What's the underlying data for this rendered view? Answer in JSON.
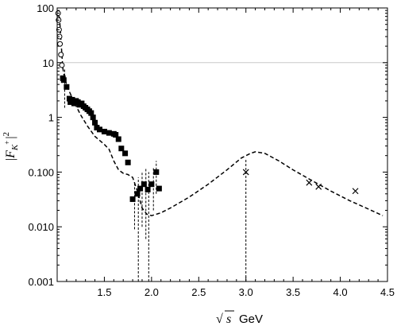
{
  "chart_data": {
    "type": "scatter",
    "xlabel_sqrt": "√",
    "xlabel_var": "s",
    "xlabel_unit": "GeV",
    "ylabel_left": "|",
    "ylabel_F": "F",
    "ylabel_sub": "K",
    "ylabel_sup": "+",
    "ylabel_right": "|",
    "ylabel_pow": "2",
    "xlim": [
      1.0,
      4.5
    ],
    "ylim": [
      0.001,
      100
    ],
    "yscale": "log",
    "grid": "horizontal line at y = 10",
    "x_ticks": [
      1.5,
      2.0,
      2.5,
      3.0,
      3.5,
      4.0,
      4.5
    ],
    "x_tick_labels": [
      "1.5",
      "2.0",
      "2.5",
      "3.0",
      "3.5",
      "4.0",
      "4.5"
    ],
    "y_ticks": [
      0.001,
      0.01,
      0.1,
      1,
      10,
      100
    ],
    "y_tick_labels": [
      "0.001",
      "0.010",
      "0.100",
      "1",
      "10",
      "100"
    ],
    "reference_line_y": 10,
    "series": [
      {
        "marker": "filled-square",
        "points": [
          {
            "x": 1.06,
            "y": 5.2
          },
          {
            "x": 1.07,
            "y": 4.8
          },
          {
            "x": 1.1,
            "y": 3.6
          },
          {
            "x": 1.13,
            "y": 2.2
          },
          {
            "x": 1.14,
            "y": 1.9
          },
          {
            "x": 1.16,
            "y": 2.1
          },
          {
            "x": 1.18,
            "y": 1.8
          },
          {
            "x": 1.2,
            "y": 2.0
          },
          {
            "x": 1.22,
            "y": 1.9
          },
          {
            "x": 1.24,
            "y": 1.7
          },
          {
            "x": 1.26,
            "y": 1.8
          },
          {
            "x": 1.28,
            "y": 1.6
          },
          {
            "x": 1.3,
            "y": 1.5
          },
          {
            "x": 1.32,
            "y": 1.4
          },
          {
            "x": 1.34,
            "y": 1.3
          },
          {
            "x": 1.36,
            "y": 1.2
          },
          {
            "x": 1.38,
            "y": 1.0
          },
          {
            "x": 1.4,
            "y": 0.8
          },
          {
            "x": 1.42,
            "y": 0.65
          },
          {
            "x": 1.45,
            "y": 0.6
          },
          {
            "x": 1.5,
            "y": 0.55
          },
          {
            "x": 1.55,
            "y": 0.52
          },
          {
            "x": 1.6,
            "y": 0.5
          },
          {
            "x": 1.62,
            "y": 0.48
          },
          {
            "x": 1.65,
            "y": 0.4
          },
          {
            "x": 1.68,
            "y": 0.27
          },
          {
            "x": 1.72,
            "y": 0.22
          },
          {
            "x": 1.75,
            "y": 0.15
          },
          {
            "x": 1.8,
            "y": 0.032
          },
          {
            "x": 1.85,
            "y": 0.04
          },
          {
            "x": 1.88,
            "y": 0.05
          },
          {
            "x": 1.92,
            "y": 0.06
          },
          {
            "x": 1.96,
            "y": 0.048
          },
          {
            "x": 2.0,
            "y": 0.06
          },
          {
            "x": 2.05,
            "y": 0.1
          },
          {
            "x": 2.08,
            "y": 0.05
          }
        ],
        "error_bars": [
          {
            "x": 1.08,
            "lo": 1.5,
            "hi": 8.0
          },
          {
            "x": 1.82,
            "lo": 0.009,
            "hi": 0.06
          },
          {
            "x": 1.86,
            "lo": 0.001,
            "hi": 0.08
          },
          {
            "x": 1.9,
            "lo": 0.01,
            "hi": 0.1
          },
          {
            "x": 1.94,
            "lo": 0.006,
            "hi": 0.12
          },
          {
            "x": 1.97,
            "lo": 0.001,
            "hi": 0.1
          },
          {
            "x": 2.02,
            "lo": 0.02,
            "hi": 0.12
          },
          {
            "x": 2.05,
            "lo": 0.04,
            "hi": 0.16
          }
        ]
      },
      {
        "marker": "open-circle",
        "points": [
          {
            "x": 1.01,
            "y": 80
          },
          {
            "x": 1.015,
            "y": 60
          },
          {
            "x": 1.02,
            "y": 40
          },
          {
            "x": 1.025,
            "y": 30
          },
          {
            "x": 1.03,
            "y": 22
          },
          {
            "x": 1.04,
            "y": 14
          },
          {
            "x": 1.05,
            "y": 9
          }
        ]
      },
      {
        "marker": "cross",
        "points": [
          {
            "x": 3.0,
            "y": 0.1
          },
          {
            "x": 3.67,
            "y": 0.064
          },
          {
            "x": 3.77,
            "y": 0.054
          },
          {
            "x": 4.16,
            "y": 0.045
          }
        ],
        "error_bars": [
          {
            "x": 3.0,
            "lo": 0.001,
            "hi": 0.18
          }
        ]
      },
      {
        "marker": "dashed-line",
        "points": [
          {
            "x": 1.02,
            "y": 90
          },
          {
            "x": 1.04,
            "y": 25
          },
          {
            "x": 1.06,
            "y": 8
          },
          {
            "x": 1.08,
            "y": 5
          },
          {
            "x": 1.12,
            "y": 3.2
          },
          {
            "x": 1.18,
            "y": 1.9
          },
          {
            "x": 1.25,
            "y": 1.1
          },
          {
            "x": 1.32,
            "y": 0.7
          },
          {
            "x": 1.4,
            "y": 0.45
          },
          {
            "x": 1.5,
            "y": 0.32
          },
          {
            "x": 1.55,
            "y": 0.26
          },
          {
            "x": 1.6,
            "y": 0.16
          },
          {
            "x": 1.65,
            "y": 0.11
          },
          {
            "x": 1.7,
            "y": 0.095
          },
          {
            "x": 1.75,
            "y": 0.09
          },
          {
            "x": 1.8,
            "y": 0.08
          },
          {
            "x": 1.85,
            "y": 0.045
          },
          {
            "x": 1.9,
            "y": 0.022
          },
          {
            "x": 1.95,
            "y": 0.017
          },
          {
            "x": 2.0,
            "y": 0.016
          },
          {
            "x": 2.1,
            "y": 0.018
          },
          {
            "x": 2.2,
            "y": 0.022
          },
          {
            "x": 2.4,
            "y": 0.035
          },
          {
            "x": 2.6,
            "y": 0.06
          },
          {
            "x": 2.8,
            "y": 0.11
          },
          {
            "x": 2.95,
            "y": 0.18
          },
          {
            "x": 3.05,
            "y": 0.22
          },
          {
            "x": 3.1,
            "y": 0.235
          },
          {
            "x": 3.2,
            "y": 0.22
          },
          {
            "x": 3.35,
            "y": 0.16
          },
          {
            "x": 3.5,
            "y": 0.11
          },
          {
            "x": 3.7,
            "y": 0.07
          },
          {
            "x": 3.9,
            "y": 0.045
          },
          {
            "x": 4.1,
            "y": 0.03
          },
          {
            "x": 4.3,
            "y": 0.021
          },
          {
            "x": 4.45,
            "y": 0.016
          }
        ]
      }
    ]
  }
}
